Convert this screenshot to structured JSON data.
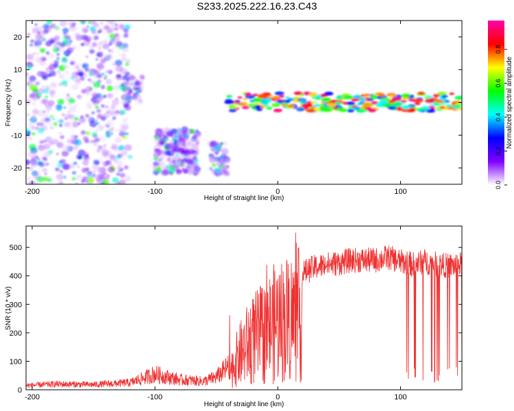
{
  "title": "S233.2025.222.16.23.C43",
  "chart_data": [
    {
      "type": "heatmap",
      "xlabel": "Height of straight line (km)",
      "ylabel": "Frequency (Hz)",
      "xlim": [
        -205,
        150
      ],
      "ylim": [
        -25,
        25
      ],
      "xticks": [
        "-200",
        "-100",
        "0",
        "100"
      ],
      "yticks": [
        "20",
        "10",
        "0",
        "-10",
        "-20"
      ],
      "colorbar": {
        "label": "Normalized spectral amplitude",
        "range": [
          0,
          0.97
        ],
        "ticks": [
          "0.0",
          "0.2",
          "0.4",
          "0.6",
          "0.8"
        ],
        "colors": [
          "#ffffff",
          "#7f00ff",
          "#0000ff",
          "#00ffff",
          "#00ff00",
          "#ffff00",
          "#ff0000",
          "#ff00aa"
        ]
      },
      "bands": [
        {
          "description": "scattered noise",
          "x": [
            -205,
            -120
          ],
          "freq": [
            -25,
            25
          ],
          "amplitude": 0.1
        },
        {
          "description": "noise cluster",
          "x": [
            -125,
            -110
          ],
          "freq": [
            0,
            8
          ],
          "amplitude": 0.25
        },
        {
          "description": "noise cluster",
          "x": [
            -100,
            -65
          ],
          "freq": [
            -22,
            -8
          ],
          "amplitude": 0.2
        },
        {
          "description": "noise cluster",
          "x": [
            -55,
            -40
          ],
          "freq": [
            -22,
            -12
          ],
          "amplitude": 0.25
        },
        {
          "description": "signal ridge",
          "x": [
            -40,
            150
          ],
          "freq": [
            -2,
            4
          ],
          "amplitude": 0.9
        }
      ]
    },
    {
      "type": "line",
      "xlabel": "Height of straight line (km)",
      "ylabel": "SNR (10 * v/v)",
      "xlim": [
        -205,
        150
      ],
      "ylim": [
        0,
        575
      ],
      "xticks": [
        "-200",
        "-100",
        "0",
        "100"
      ],
      "yticks": [
        "0",
        "100",
        "200",
        "300",
        "400",
        "500"
      ],
      "line_color": "#f03030",
      "x": [
        -205,
        -180,
        -150,
        -120,
        -110,
        -100,
        -80,
        -60,
        -50,
        -40,
        -35,
        -30,
        -25,
        -20,
        -15,
        -10,
        -5,
        0,
        5,
        10,
        15,
        20,
        25,
        30,
        40,
        50,
        60,
        70,
        80,
        90,
        100,
        110,
        120,
        130,
        140,
        150
      ],
      "y": [
        15,
        20,
        18,
        25,
        40,
        55,
        35,
        30,
        45,
        80,
        140,
        190,
        230,
        260,
        280,
        300,
        330,
        360,
        360,
        380,
        370,
        410,
        420,
        430,
        440,
        445,
        455,
        455,
        455,
        465,
        450,
        440,
        450,
        440,
        435,
        440
      ]
    }
  ]
}
